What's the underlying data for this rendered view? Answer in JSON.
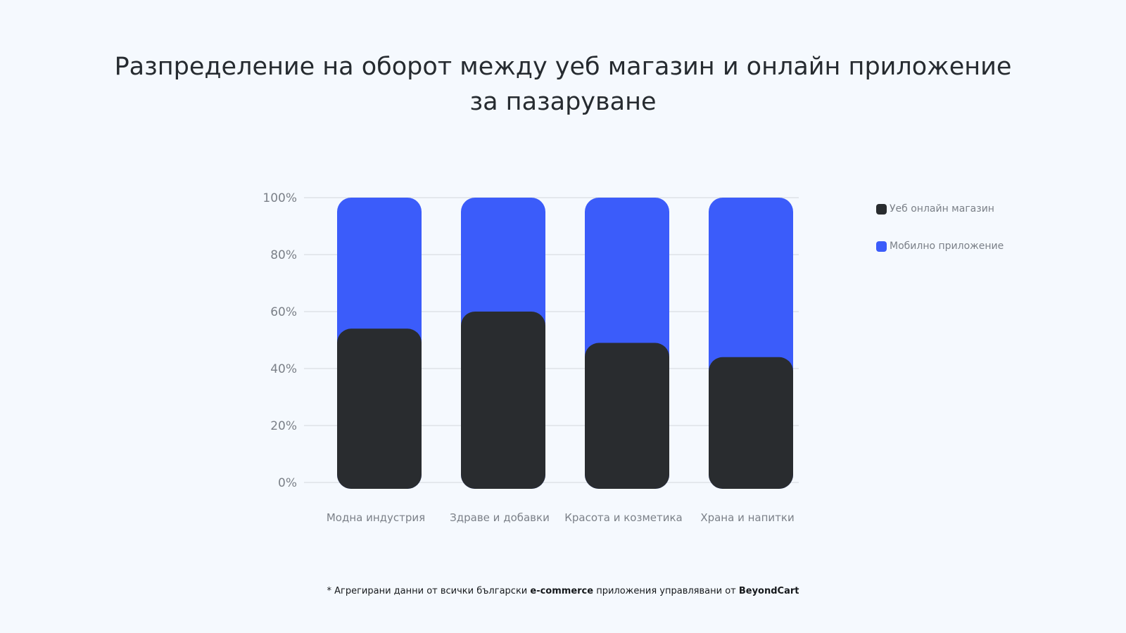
{
  "title": "Разпределение на оборот между уеб магазин и онлайн приложение за пазаруване",
  "chart_data": {
    "type": "bar",
    "stacked": true,
    "categories": [
      "Модна индустрия",
      "Здраве и добавки",
      "Красота и козметика",
      "Храна и напитки"
    ],
    "series": [
      {
        "name": "Уеб онлайн магазин",
        "color": "#292c2f",
        "values": [
          54,
          60,
          49,
          44
        ]
      },
      {
        "name": "Мобилно приложение",
        "color": "#3b5cfa",
        "values": [
          46,
          40,
          51,
          56
        ]
      }
    ],
    "ylim": [
      0,
      100
    ],
    "yticks": [
      0,
      20,
      40,
      60,
      80,
      100
    ],
    "ytick_suffix": "%",
    "grid": true,
    "legend_position": "right"
  },
  "footnote": {
    "prefix": "* Агрегирани данни от всички български ",
    "highlight1": "e-commerce",
    "middle": " приложения управлявани от ",
    "highlight2": "BeyondCart"
  }
}
